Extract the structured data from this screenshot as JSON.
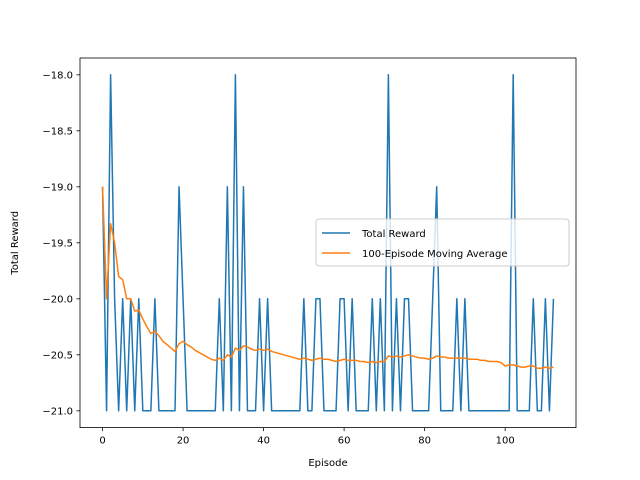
{
  "chart_data": {
    "type": "line",
    "title": "",
    "xlabel": "Episode",
    "ylabel": "Total Reward",
    "xlim": [
      -5.6,
      117.6
    ],
    "ylim": [
      -21.15,
      -17.85
    ],
    "xticks": [
      0,
      20,
      40,
      60,
      80,
      100
    ],
    "xtick_labels": [
      "0",
      "20",
      "40",
      "60",
      "80",
      "100"
    ],
    "yticks": [
      -21.0,
      -20.5,
      -20.0,
      -19.5,
      -19.0,
      -18.5,
      -18.0
    ],
    "ytick_labels": [
      "−21.0",
      "−20.5",
      "−20.0",
      "−19.5",
      "−19.0",
      "−18.5",
      "−18.0"
    ],
    "grid": false,
    "legend_position": "center-right",
    "series": [
      {
        "name": "Total Reward",
        "color": "#1f77b4",
        "x": [
          0,
          1,
          2,
          3,
          4,
          5,
          6,
          7,
          8,
          9,
          10,
          11,
          12,
          13,
          14,
          15,
          16,
          17,
          18,
          19,
          20,
          21,
          22,
          23,
          24,
          25,
          26,
          27,
          28,
          29,
          30,
          31,
          32,
          33,
          34,
          35,
          36,
          37,
          38,
          39,
          40,
          41,
          42,
          43,
          44,
          45,
          46,
          47,
          48,
          49,
          50,
          51,
          52,
          53,
          54,
          55,
          56,
          57,
          58,
          59,
          60,
          61,
          62,
          63,
          64,
          65,
          66,
          67,
          68,
          69,
          70,
          71,
          72,
          73,
          74,
          75,
          76,
          77,
          78,
          79,
          80,
          81,
          82,
          83,
          84,
          85,
          86,
          87,
          88,
          89,
          90,
          91,
          92,
          93,
          94,
          95,
          96,
          97,
          98,
          99,
          100,
          101,
          102,
          103,
          104,
          105,
          106,
          107,
          108,
          109,
          110,
          111,
          112
        ],
        "y": [
          -19,
          -21,
          -18,
          -20,
          -21,
          -20,
          -21,
          -20,
          -21,
          -20,
          -21,
          -21,
          -21,
          -20,
          -21,
          -21,
          -21,
          -21,
          -21,
          -19,
          -20,
          -21,
          -21,
          -21,
          -21,
          -21,
          -21,
          -21,
          -21,
          -20,
          -21,
          -19,
          -21,
          -18,
          -21,
          -19,
          -21,
          -21,
          -21,
          -20,
          -21,
          -20,
          -21,
          -21,
          -21,
          -21,
          -21,
          -21,
          -21,
          -21,
          -20,
          -21,
          -21,
          -20,
          -20,
          -21,
          -21,
          -21,
          -21,
          -20,
          -20,
          -21,
          -20,
          -21,
          -21,
          -21,
          -21,
          -20,
          -21,
          -20,
          -21,
          -18,
          -21,
          -20,
          -21,
          -20,
          -20,
          -21,
          -21,
          -21,
          -21,
          -21,
          -20,
          -19,
          -21,
          -21,
          -21,
          -21,
          -20,
          -21,
          -20,
          -21,
          -21,
          -21,
          -21,
          -21,
          -21,
          -21,
          -21,
          -21,
          -21,
          -21,
          -18,
          -21,
          -21,
          -21,
          -21,
          -20,
          -21,
          -21,
          -20,
          -21,
          -20
        ]
      },
      {
        "name": "100-Episode Moving Average",
        "color": "#ff7f0e",
        "x": [
          0,
          1,
          2,
          3,
          4,
          5,
          6,
          7,
          8,
          9,
          10,
          11,
          12,
          13,
          14,
          15,
          16,
          17,
          18,
          19,
          20,
          21,
          22,
          23,
          24,
          25,
          26,
          27,
          28,
          29,
          30,
          31,
          32,
          33,
          34,
          35,
          36,
          37,
          38,
          39,
          40,
          41,
          42,
          43,
          44,
          45,
          46,
          47,
          48,
          49,
          50,
          51,
          52,
          53,
          54,
          55,
          56,
          57,
          58,
          59,
          60,
          61,
          62,
          63,
          64,
          65,
          66,
          67,
          68,
          69,
          70,
          71,
          72,
          73,
          74,
          75,
          76,
          77,
          78,
          79,
          80,
          81,
          82,
          83,
          84,
          85,
          86,
          87,
          88,
          89,
          90,
          91,
          92,
          93,
          94,
          95,
          96,
          97,
          98,
          99,
          100,
          101,
          102,
          103,
          104,
          105,
          106,
          107,
          108,
          109,
          110,
          111,
          112
        ],
        "y": [
          -19.0,
          -20.0,
          -19.33,
          -19.5,
          -19.8,
          -19.83,
          -20.0,
          -20.0,
          -20.11,
          -20.1,
          -20.18,
          -20.25,
          -20.31,
          -20.29,
          -20.33,
          -20.38,
          -20.41,
          -20.44,
          -20.47,
          -20.4,
          -20.38,
          -20.41,
          -20.43,
          -20.46,
          -20.48,
          -20.5,
          -20.52,
          -20.54,
          -20.55,
          -20.53,
          -20.55,
          -20.5,
          -20.52,
          -20.44,
          -20.46,
          -20.42,
          -20.43,
          -20.45,
          -20.46,
          -20.45,
          -20.46,
          -20.45,
          -20.47,
          -20.48,
          -20.49,
          -20.5,
          -20.51,
          -20.52,
          -20.53,
          -20.54,
          -20.53,
          -20.54,
          -20.55,
          -20.54,
          -20.53,
          -20.54,
          -20.54,
          -20.55,
          -20.56,
          -20.55,
          -20.54,
          -20.55,
          -20.55,
          -20.55,
          -20.56,
          -20.56,
          -20.57,
          -20.56,
          -20.57,
          -20.56,
          -20.56,
          -20.51,
          -20.52,
          -20.51,
          -20.52,
          -20.51,
          -20.5,
          -20.51,
          -20.52,
          -20.53,
          -20.53,
          -20.54,
          -20.53,
          -20.51,
          -20.52,
          -20.52,
          -20.53,
          -20.53,
          -20.53,
          -20.53,
          -20.53,
          -20.54,
          -20.54,
          -20.54,
          -20.55,
          -20.55,
          -20.56,
          -20.56,
          -20.56,
          -20.57,
          -20.6,
          -20.59,
          -20.59,
          -20.6,
          -20.61,
          -20.61,
          -20.6,
          -20.6,
          -20.62,
          -20.62,
          -20.61,
          -20.62,
          -20.61
        ]
      }
    ]
  }
}
